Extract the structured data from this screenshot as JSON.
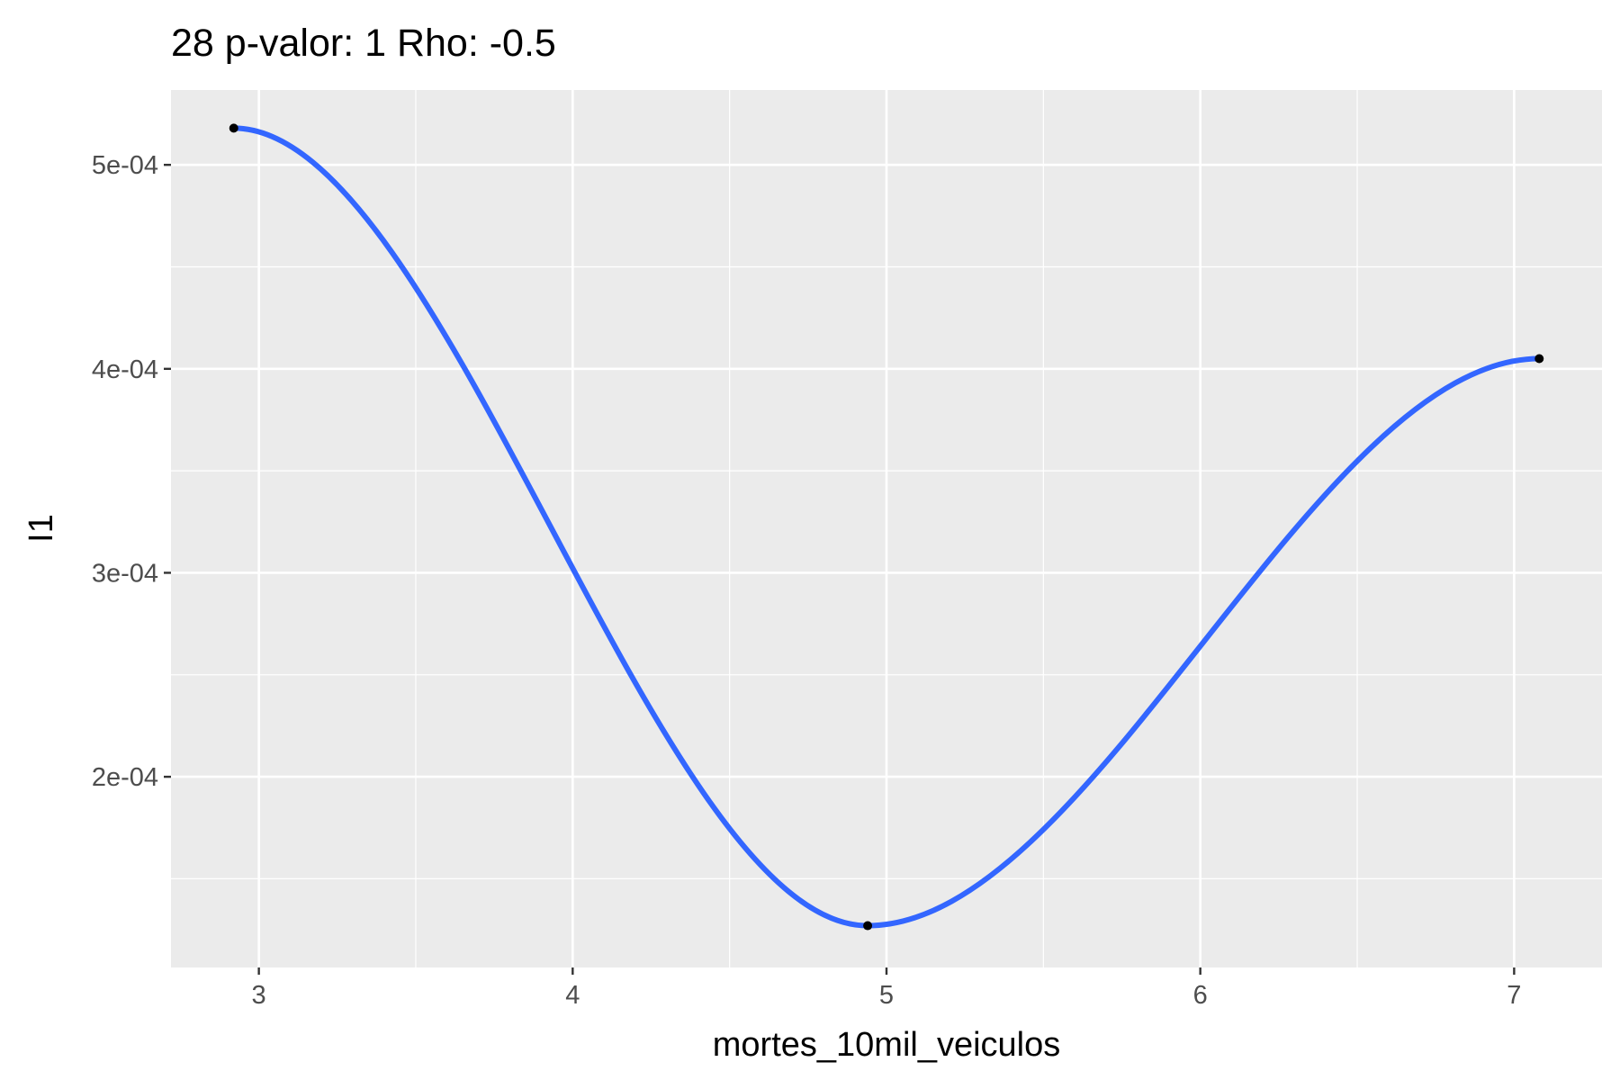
{
  "chart_data": {
    "type": "scatter",
    "title": "28 p-valor: 1 Rho: -0.5",
    "xlabel": "mortes_10mil_veiculos",
    "ylabel": "I1",
    "xlim": [
      2.72,
      7.28
    ],
    "ylim": [
      0.0001065,
      0.0005367
    ],
    "x_ticks": [
      3,
      4,
      5,
      6,
      7
    ],
    "x_tick_labels": [
      "3",
      "4",
      "5",
      "6",
      "7"
    ],
    "y_ticks": [
      0.0002,
      0.0003,
      0.0004,
      0.0005
    ],
    "y_tick_labels": [
      "2e-04",
      "3e-04",
      "4e-04",
      "5e-04"
    ],
    "grid": true,
    "points": [
      {
        "x": 2.92,
        "y": 0.000518
      },
      {
        "x": 4.94,
        "y": 0.000127
      },
      {
        "x": 7.08,
        "y": 0.000405
      }
    ],
    "smooth_color": "#3366ff",
    "point_color": "#000000",
    "panel_color": "#ebebeb",
    "grid_color": "#ffffff"
  }
}
